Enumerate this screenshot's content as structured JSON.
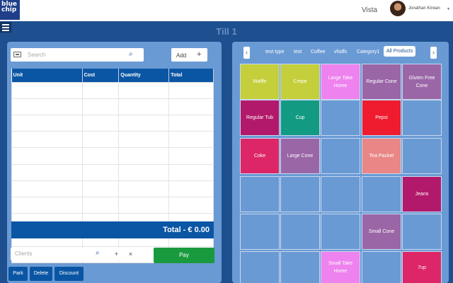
{
  "header": {
    "logo_lines": [
      "blue",
      "chip"
    ],
    "vista": "Vista",
    "user_name": "Jonathan Kirwan",
    "till_title": "Till 1"
  },
  "order": {
    "search_placeholder": "Search",
    "add_label": "Add",
    "columns": [
      "Unit",
      "Cost",
      "Quantity",
      "Total"
    ],
    "total": "Total - € 0.00",
    "clients_placeholder": "Clients",
    "add_client": "+",
    "remove_client": "×",
    "pay_label": "Pay",
    "actions": [
      "Park",
      "Delete",
      "Discount"
    ]
  },
  "categories": {
    "prev": "‹",
    "next": "›",
    "tabs": [
      "test type",
      "test",
      "Coffee",
      "vfsdfs",
      "Category1",
      "All Products"
    ],
    "active": "All Products"
  },
  "products": [
    {
      "label": "Waffle",
      "color": "#c4cf3b"
    },
    {
      "label": "Crepe",
      "color": "#c4cf3b"
    },
    {
      "label": "Large Take Home",
      "color": "#ee82ee"
    },
    {
      "label": "Regular Cone",
      "color": "#9a66a6"
    },
    {
      "label": "Gluten Free Cone",
      "color": "#9a66a6"
    },
    {
      "label": "Regular Tub",
      "color": "#b2196a"
    },
    {
      "label": "Cup",
      "color": "#139a82"
    },
    {
      "label": "",
      "color": ""
    },
    {
      "label": "Pepsi",
      "color": "#ee1c2e"
    },
    {
      "label": "",
      "color": ""
    },
    {
      "label": "Coke",
      "color": "#dd2667"
    },
    {
      "label": "Large Cone",
      "color": "#9a66a6"
    },
    {
      "label": "",
      "color": ""
    },
    {
      "label": "Tea Packet",
      "color": "#e98686"
    },
    {
      "label": "",
      "color": ""
    },
    {
      "label": "",
      "color": ""
    },
    {
      "label": "",
      "color": ""
    },
    {
      "label": "",
      "color": ""
    },
    {
      "label": "",
      "color": ""
    },
    {
      "label": "Jeans",
      "color": "#b2196a"
    },
    {
      "label": "",
      "color": ""
    },
    {
      "label": "",
      "color": ""
    },
    {
      "label": "",
      "color": ""
    },
    {
      "label": "Small Cone",
      "color": "#9a66a6"
    },
    {
      "label": "",
      "color": ""
    },
    {
      "label": "",
      "color": ""
    },
    {
      "label": "",
      "color": ""
    },
    {
      "label": "Small Take Home",
      "color": "#ee82ee"
    },
    {
      "label": "",
      "color": ""
    },
    {
      "label": "7up",
      "color": "#dd2667"
    }
  ]
}
